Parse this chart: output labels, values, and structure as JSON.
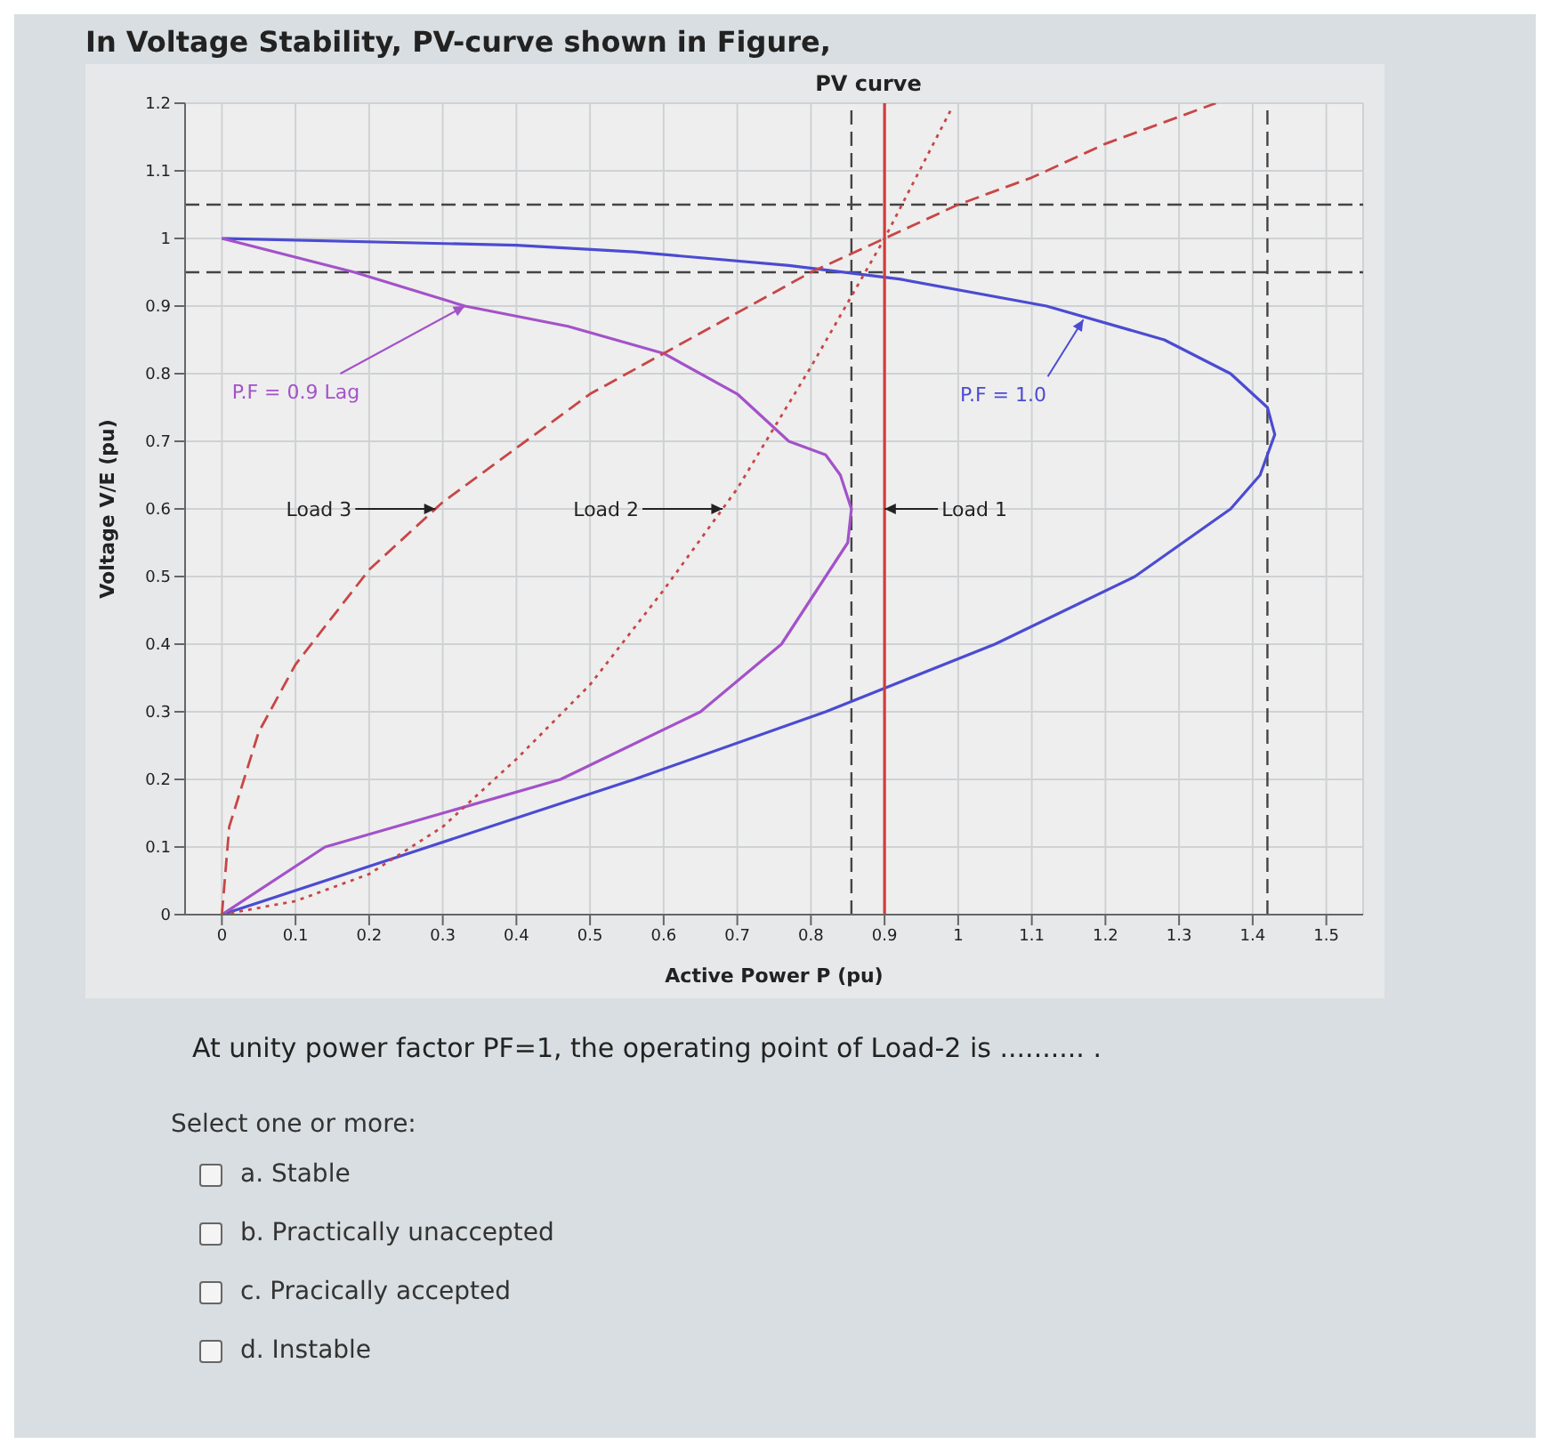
{
  "chart_data": {
    "type": "line",
    "title": "PV curve",
    "xlabel": "Active Power P (pu)",
    "ylabel": "Voltage V/E (pu)",
    "xlim": [
      -0.05,
      1.55
    ],
    "ylim": [
      0,
      1.2
    ],
    "xticks": [
      0,
      0.1,
      0.2,
      0.3,
      0.4,
      0.5,
      0.6,
      0.7,
      0.8,
      0.9,
      1,
      1.1,
      1.2,
      1.3,
      1.4,
      1.5
    ],
    "yticks": [
      0,
      0.1,
      0.2,
      0.3,
      0.4,
      0.5,
      0.6,
      0.7,
      0.8,
      0.9,
      1,
      1.1,
      1.2
    ],
    "grid": true,
    "marker": "none",
    "series": [
      {
        "color": "#4b4bd2",
        "line_style": "solid",
        "x": [
          0,
          0.4,
          0.56,
          0.77,
          0.92,
          1.12,
          1.28,
          1.37,
          1.42,
          1.43,
          1.41,
          1.37,
          1.24,
          1.05,
          0.82,
          0.56,
          0.28,
          0
        ],
        "values": [
          1,
          0.99,
          0.98,
          0.96,
          0.94,
          0.9,
          0.85,
          0.8,
          0.75,
          0.71,
          0.65,
          0.6,
          0.5,
          0.4,
          0.3,
          0.2,
          0.1,
          0
        ]
      },
      {
        "color": "#a352c9",
        "line_style": "solid",
        "x": [
          0,
          0.18,
          0.33,
          0.47,
          0.6,
          0.7,
          0.77,
          0.82,
          0.84,
          0.855,
          0.85,
          0.82,
          0.76,
          0.65,
          0.46,
          0.14,
          0
        ],
        "values": [
          1,
          0.95,
          0.9,
          0.87,
          0.83,
          0.77,
          0.7,
          0.68,
          0.65,
          0.6,
          0.55,
          0.5,
          0.4,
          0.3,
          0.2,
          0.1,
          0
        ]
      },
      {
        "color": "#d23c3c",
        "line_style": "solid",
        "x": [
          0.9,
          0.9
        ],
        "values": [
          0,
          1.2
        ]
      },
      {
        "color": "#c84646",
        "line_style": "dotted",
        "x": [
          0,
          0.1,
          0.2,
          0.3,
          0.4,
          0.5,
          0.6,
          0.7,
          0.8,
          0.9,
          0.99
        ],
        "values": [
          0,
          0.02,
          0.06,
          0.13,
          0.23,
          0.34,
          0.48,
          0.63,
          0.81,
          1,
          1.19
        ]
      },
      {
        "color": "#c84646",
        "line_style": "dashed",
        "x": [
          0,
          0.01,
          0.05,
          0.1,
          0.2,
          0.3,
          0.4,
          0.5,
          0.6,
          0.7,
          0.8,
          0.9,
          1,
          1.1,
          1.2,
          1.3,
          1.35
        ],
        "values": [
          0,
          0.13,
          0.27,
          0.37,
          0.51,
          0.61,
          0.69,
          0.77,
          0.83,
          0.89,
          0.95,
          1,
          1.05,
          1.09,
          1.14,
          1.18,
          1.2
        ]
      }
    ],
    "ref_lines": [
      {
        "axis": "y",
        "value": 1.05,
        "color": "#444444",
        "line_style": "dashed"
      },
      {
        "axis": "y",
        "value": 0.95,
        "color": "#444444",
        "line_style": "dashed"
      },
      {
        "axis": "x",
        "value": 0.855,
        "color": "#444444",
        "line_style": "dashed"
      },
      {
        "axis": "x",
        "value": 1.42,
        "color": "#444444",
        "line_style": "dashed"
      }
    ],
    "annotations": [
      "In Voltage Stability, PV-curve shown in Figure,",
      {
        "text": "P.F = 0.9 Lag",
        "x": 0.33,
        "y": 0.9
      },
      {
        "text": "P.F = 1.0",
        "x": 1.17,
        "y": 0.88
      },
      {
        "text": "Load 3",
        "x": 0.29,
        "y": 0.6
      },
      {
        "text": "Load 2",
        "x": 0.68,
        "y": 0.6
      },
      {
        "text": "Load 1",
        "x": 0.9,
        "y": 0.6
      },
      "At unity power factor PF=1, the operating point of Load-2 is .......... .",
      "Select one or more:",
      "a.  Stable",
      "b.  Practically unaccepted",
      "c.  Pracically accepted",
      "d.  Instable"
    ]
  }
}
